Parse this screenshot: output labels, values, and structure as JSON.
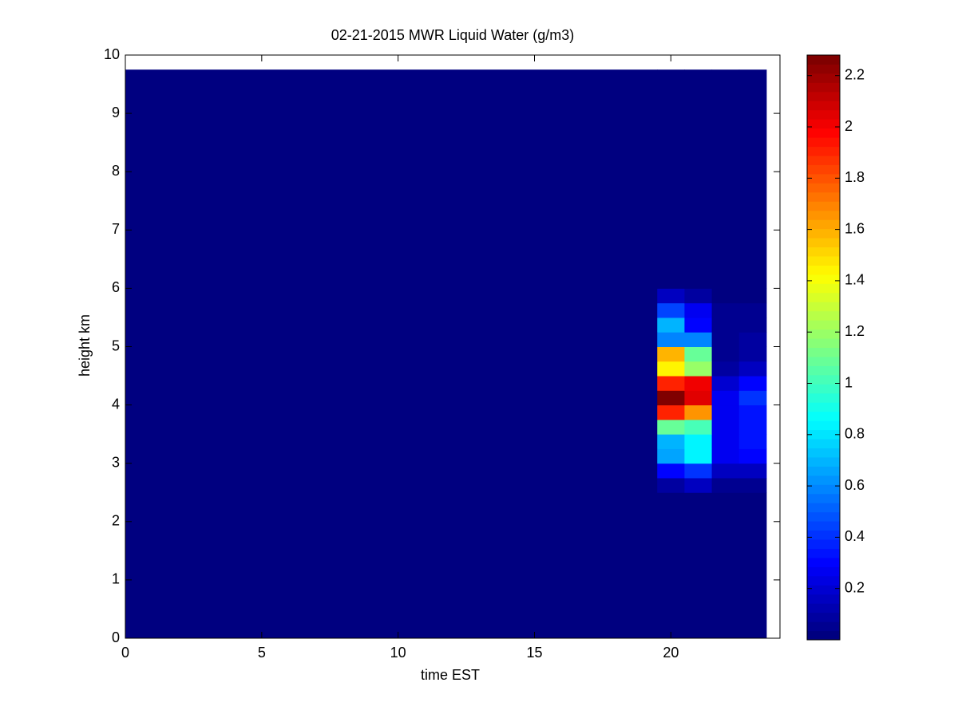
{
  "chart_data": {
    "type": "heatmap",
    "title": "02-21-2015 MWR Liquid Water (g/m3)",
    "x_label": "time EST",
    "y_label": "height km",
    "xbins": [
      0,
      19.5,
      20.5,
      21.5,
      22.5,
      23.5
    ],
    "ybins": [
      0,
      2.5,
      2.75,
      3.0,
      3.25,
      3.5,
      3.75,
      4.0,
      4.25,
      4.5,
      4.75,
      5.0,
      5.25,
      5.5,
      5.75,
      6.0,
      9.75
    ],
    "values": [
      [
        0,
        0,
        0,
        0,
        0
      ],
      [
        0,
        0.1,
        0.15,
        0.05,
        0.05
      ],
      [
        0,
        0.3,
        0.4,
        0.15,
        0.15
      ],
      [
        0,
        0.65,
        0.85,
        0.25,
        0.3
      ],
      [
        0,
        0.7,
        0.85,
        0.25,
        0.35
      ],
      [
        0,
        1.1,
        1.0,
        0.25,
        0.35
      ],
      [
        0,
        1.9,
        1.65,
        0.25,
        0.35
      ],
      [
        0,
        2.25,
        2.05,
        0.25,
        0.4
      ],
      [
        0,
        1.9,
        2.0,
        0.2,
        0.3
      ],
      [
        0,
        1.45,
        1.2,
        0.1,
        0.15
      ],
      [
        0,
        1.6,
        1.1,
        0.05,
        0.1
      ],
      [
        0,
        0.6,
        0.6,
        0.05,
        0.08
      ],
      [
        0,
        0.7,
        0.3,
        0.05,
        0.05
      ],
      [
        0,
        0.45,
        0.25,
        0.05,
        0.05
      ],
      [
        0,
        0.15,
        0.1,
        0.02,
        0.02
      ],
      [
        0,
        0,
        0,
        0,
        0
      ]
    ],
    "xlim": [
      0,
      24
    ],
    "ylim": [
      0,
      10
    ],
    "xticks": [
      0,
      5,
      10,
      15,
      20
    ],
    "yticks": [
      0,
      1,
      2,
      3,
      4,
      5,
      6,
      7,
      8,
      9,
      10
    ],
    "colormap": "jet",
    "clim": [
      0,
      2.28
    ],
    "cticks": [
      0.2,
      0.4,
      0.6,
      0.8,
      1,
      1.2,
      1.4,
      1.6,
      1.8,
      2,
      2.2
    ]
  }
}
